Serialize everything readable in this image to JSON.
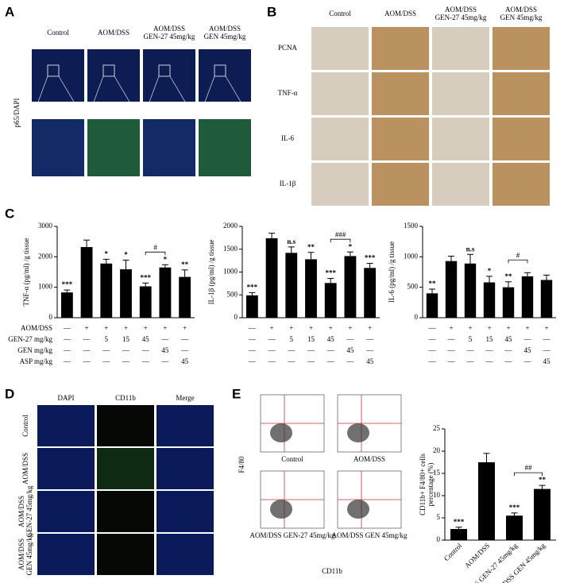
{
  "panels": {
    "a": "A",
    "b": "B",
    "c": "C",
    "d": "D",
    "e": "E"
  },
  "panel_a": {
    "columns": [
      [
        "Control"
      ],
      [
        "AOM/DSS"
      ],
      [
        "AOM/DSS",
        "GEN-27 45mg/kg"
      ],
      [
        "AOM/DSS",
        "GEN 45mg/kg"
      ]
    ],
    "row_label": "p65/DAPI"
  },
  "panel_b": {
    "columns": [
      [
        "Control"
      ],
      [
        "AOM/DSS"
      ],
      [
        "AOM/DSS",
        "GEN-27 45mg/kg"
      ],
      [
        "AOM/DSS",
        "GEN 45mg/kg"
      ]
    ],
    "rows": [
      "PCNA",
      "TNF-α",
      "IL-6",
      "IL-1β"
    ]
  },
  "treatments": {
    "labels": [
      "AOM/DSS",
      "GEN-27 mg/kg",
      "GEN mg/kg",
      "ASP mg/kg"
    ],
    "rows": [
      [
        "—",
        "+",
        "+",
        "+",
        "+",
        "+",
        "+"
      ],
      [
        "—",
        "—",
        "5",
        "15",
        "45",
        "—",
        "—"
      ],
      [
        "—",
        "—",
        "—",
        "—",
        "—",
        "45",
        "—"
      ],
      [
        "—",
        "—",
        "—",
        "—",
        "—",
        "—",
        "45"
      ]
    ]
  },
  "panel_d": {
    "columns": [
      "DAPI",
      "CD11b",
      "Merge"
    ],
    "rows": [
      [
        "Control"
      ],
      [
        "AOM/DSS"
      ],
      [
        "AOM/DSS",
        "GEN-27 45mg/kg"
      ],
      [
        "AOM/DSS",
        "GEN 45mg/kg"
      ]
    ]
  },
  "panel_e": {
    "y_axis": "F4/80",
    "x_axis": "CD11b",
    "plots": [
      "Control",
      "AOM/DSS",
      "AOM/DSS GEN-27 45mg/kg",
      "AOM/DSS GEN 45mg/kg"
    ]
  },
  "chart_data": [
    {
      "type": "bar",
      "ylabel": [
        "TNF-α (pg/ml) /g tissue"
      ],
      "color": "#000000",
      "ylim": [
        0,
        3000
      ],
      "yticks": [
        0,
        1000,
        2000,
        3000
      ],
      "values": [
        830,
        2320,
        1780,
        1590,
        1030,
        1650,
        1340
      ],
      "errors": [
        80,
        230,
        140,
        300,
        110,
        90,
        230
      ],
      "annotations": [
        "***",
        null,
        "*",
        "*",
        "***",
        "*",
        "**"
      ],
      "bracket": {
        "label": "#",
        "bars": [
          4,
          5
        ]
      }
    },
    {
      "type": "bar",
      "ylabel": [
        "IL-1β (pg/ml) /g tissue"
      ],
      "color": "#000000",
      "ylim": [
        0,
        2000
      ],
      "yticks": [
        0,
        500,
        1000,
        1500,
        2000
      ],
      "values": [
        490,
        1740,
        1420,
        1280,
        760,
        1350,
        1090
      ],
      "errors": [
        60,
        110,
        130,
        150,
        100,
        90,
        100
      ],
      "annotations": [
        "***",
        null,
        "n.s",
        "**",
        "***",
        "*",
        "***"
      ],
      "bracket": {
        "label": "###",
        "bars": [
          4,
          5
        ]
      }
    },
    {
      "type": "bar",
      "ylabel": [
        "IL-6 (pg/ml) /g tissue"
      ],
      "color": "#000000",
      "ylim": [
        0,
        1500
      ],
      "yticks": [
        0,
        500,
        1000,
        1500
      ],
      "values": [
        400,
        930,
        890,
        580,
        500,
        680,
        620
      ],
      "errors": [
        70,
        80,
        150,
        100,
        90,
        60,
        80
      ],
      "annotations": [
        "**",
        null,
        "n.s",
        "*",
        "**",
        null,
        null
      ],
      "bracket": {
        "label": "#",
        "bars": [
          4,
          5
        ]
      }
    },
    {
      "type": "bar",
      "ylabel": [
        "CD11b+ F4/80+ cells",
        "percentage (%)"
      ],
      "color": "#000000",
      "ylim": [
        0,
        25
      ],
      "yticks": [
        0,
        5,
        10,
        15,
        20,
        25
      ],
      "categories": [
        "Control",
        "AOM/DSS",
        "AOM/DSS GEN-27 45mg/kg",
        "AOM/DSS GEN 45mg/kg"
      ],
      "values": [
        2.5,
        17.5,
        5.5,
        11.5
      ],
      "errors": [
        0.4,
        2,
        0.6,
        0.8
      ],
      "annotations": [
        "***",
        null,
        "***",
        "**"
      ],
      "bracket": {
        "label": "##",
        "bars": [
          2,
          3
        ]
      }
    }
  ]
}
